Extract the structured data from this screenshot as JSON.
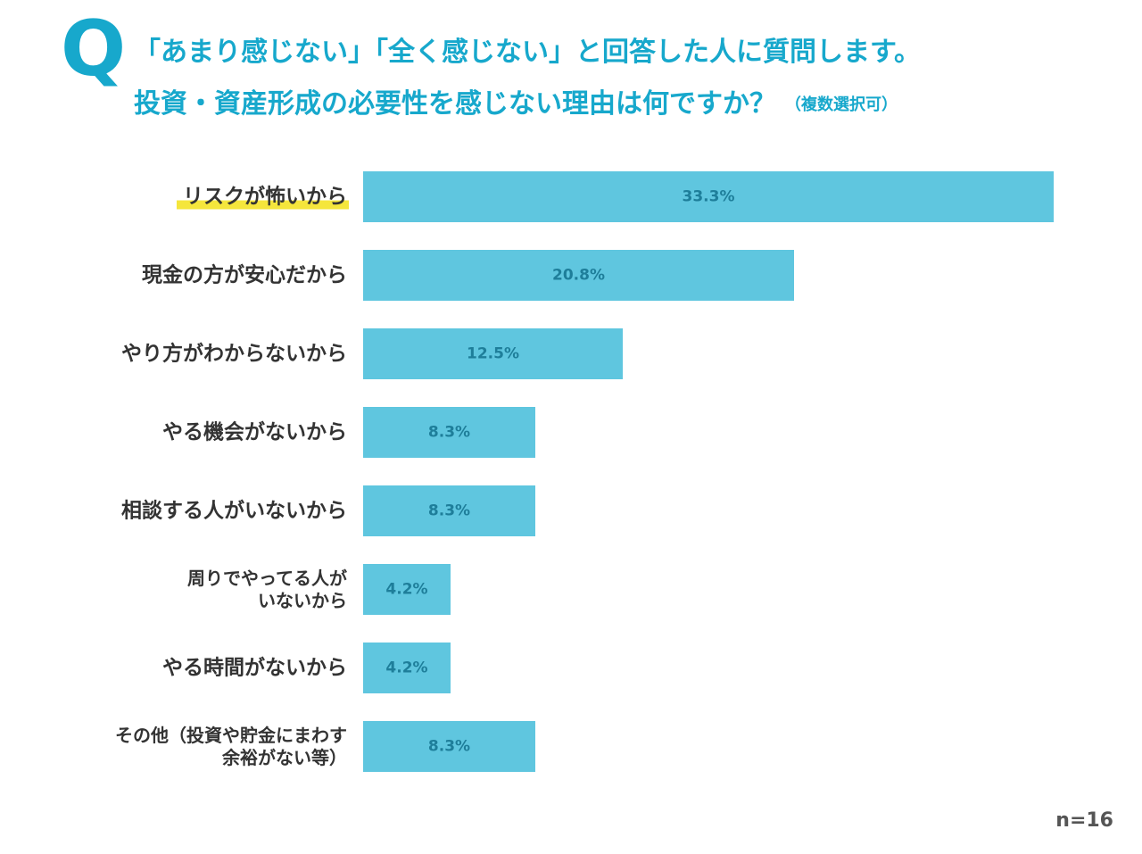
{
  "header": {
    "q_mark": "Q",
    "line1": "「あまり感じない」「全く感じない」と回答した人に質問します。",
    "line2": "投資・資産形成の必要性を感じない理由は何ですか？",
    "note": "（複数選択可）"
  },
  "footer": {
    "n_label": "n=16"
  },
  "colors": {
    "accent": "#17a8cc",
    "bar": "#5fc6df",
    "bar_label": "#1e7e9a",
    "highlight": "#f5e63c",
    "text": "#333333"
  },
  "chart_data": {
    "type": "bar",
    "orientation": "horizontal",
    "categories": [
      [
        "リスクが怖いから"
      ],
      [
        "現金の方が安心だから"
      ],
      [
        "やり方がわからないから"
      ],
      [
        "やる機会がないから"
      ],
      [
        "相談する人がいないから"
      ],
      [
        "周りでやってる人が",
        "いないから"
      ],
      [
        "やる時間がないから"
      ],
      [
        "その他（投資や貯金にまわす",
        "余裕がない等）"
      ]
    ],
    "values": [
      33.3,
      20.8,
      12.5,
      8.3,
      8.3,
      4.2,
      4.2,
      8.3
    ],
    "value_labels": [
      "33.3%",
      "20.8%",
      "12.5%",
      "8.3%",
      "8.3%",
      "4.2%",
      "4.2%",
      "8.3%"
    ],
    "highlighted_category_index": 0,
    "xlim": [
      0,
      33.3
    ],
    "grid": false,
    "legend": "none"
  }
}
